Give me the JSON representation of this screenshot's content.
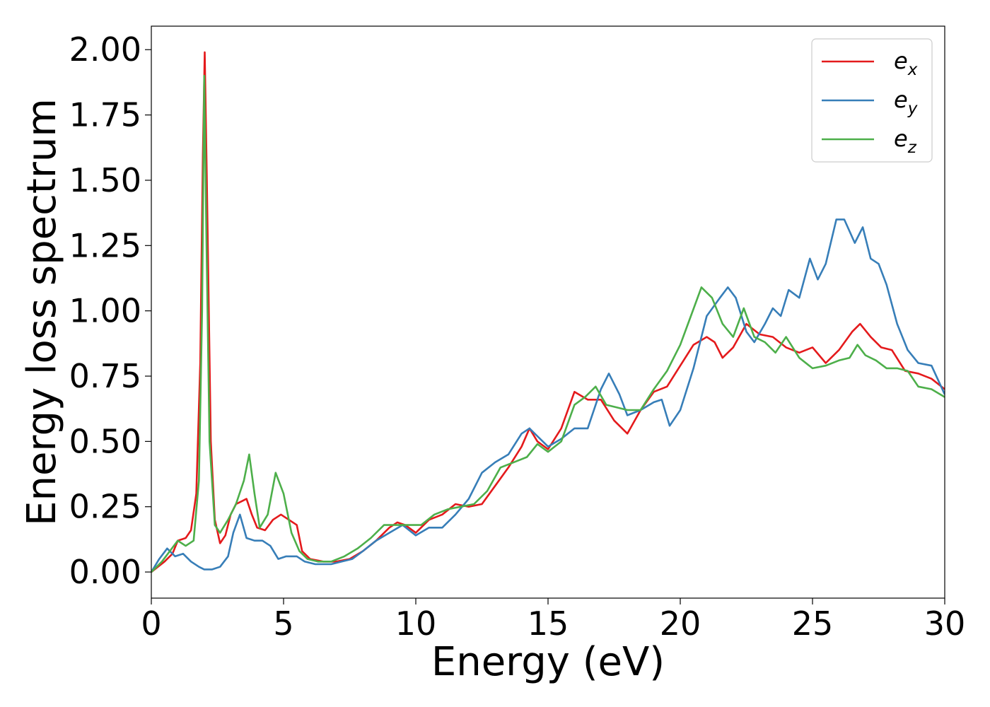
{
  "chart_data": {
    "type": "line",
    "title": "",
    "xlabel": "Energy (eV)",
    "ylabel": "Energy loss spectrum",
    "xlim": [
      0,
      30
    ],
    "ylim": [
      -0.1,
      2.09
    ],
    "xticks": [
      0,
      5,
      10,
      15,
      20,
      25,
      30
    ],
    "xtick_labels": [
      "0",
      "5",
      "10",
      "15",
      "20",
      "25",
      "30"
    ],
    "yticks": [
      0,
      0.25,
      0.5,
      0.75,
      1.0,
      1.25,
      1.5,
      1.75,
      2.0
    ],
    "ytick_labels": [
      "0.00",
      "0.25",
      "0.50",
      "0.75",
      "1.00",
      "1.25",
      "1.50",
      "1.75",
      "2.00"
    ],
    "grid": false,
    "legend_position": "top-right",
    "series": [
      {
        "name": "e_x",
        "label_base": "e",
        "label_sub": "x",
        "color": "#e41a1c",
        "points": [
          [
            0,
            0
          ],
          [
            0.5,
            0.04
          ],
          [
            0.8,
            0.07
          ],
          [
            1.0,
            0.12
          ],
          [
            1.3,
            0.13
          ],
          [
            1.5,
            0.16
          ],
          [
            1.7,
            0.3
          ],
          [
            1.85,
            0.8
          ],
          [
            1.95,
            1.6
          ],
          [
            2.02,
            1.99
          ],
          [
            2.1,
            1.5
          ],
          [
            2.25,
            0.5
          ],
          [
            2.4,
            0.2
          ],
          [
            2.6,
            0.11
          ],
          [
            2.8,
            0.14
          ],
          [
            3.0,
            0.22
          ],
          [
            3.2,
            0.26
          ],
          [
            3.4,
            0.27
          ],
          [
            3.6,
            0.28
          ],
          [
            3.8,
            0.22
          ],
          [
            4.0,
            0.17
          ],
          [
            4.3,
            0.16
          ],
          [
            4.6,
            0.2
          ],
          [
            4.9,
            0.22
          ],
          [
            5.2,
            0.2
          ],
          [
            5.5,
            0.18
          ],
          [
            5.7,
            0.08
          ],
          [
            6.0,
            0.05
          ],
          [
            6.5,
            0.04
          ],
          [
            7.0,
            0.04
          ],
          [
            7.5,
            0.05
          ],
          [
            8.0,
            0.08
          ],
          [
            8.5,
            0.12
          ],
          [
            9.0,
            0.17
          ],
          [
            9.3,
            0.19
          ],
          [
            9.6,
            0.18
          ],
          [
            10.0,
            0.15
          ],
          [
            10.5,
            0.2
          ],
          [
            11.0,
            0.22
          ],
          [
            11.5,
            0.26
          ],
          [
            12.0,
            0.25
          ],
          [
            12.5,
            0.26
          ],
          [
            13.0,
            0.33
          ],
          [
            13.5,
            0.4
          ],
          [
            14.0,
            0.48
          ],
          [
            14.3,
            0.55
          ],
          [
            14.6,
            0.5
          ],
          [
            15.0,
            0.47
          ],
          [
            15.5,
            0.55
          ],
          [
            16.0,
            0.69
          ],
          [
            16.5,
            0.66
          ],
          [
            17.0,
            0.66
          ],
          [
            17.5,
            0.58
          ],
          [
            18.0,
            0.53
          ],
          [
            18.5,
            0.62
          ],
          [
            19.0,
            0.69
          ],
          [
            19.5,
            0.71
          ],
          [
            20.0,
            0.79
          ],
          [
            20.5,
            0.87
          ],
          [
            21.0,
            0.9
          ],
          [
            21.3,
            0.88
          ],
          [
            21.6,
            0.82
          ],
          [
            22.0,
            0.86
          ],
          [
            22.5,
            0.95
          ],
          [
            23.0,
            0.91
          ],
          [
            23.5,
            0.9
          ],
          [
            24.0,
            0.86
          ],
          [
            24.5,
            0.84
          ],
          [
            25.0,
            0.86
          ],
          [
            25.5,
            0.8
          ],
          [
            26.0,
            0.85
          ],
          [
            26.5,
            0.92
          ],
          [
            26.8,
            0.95
          ],
          [
            27.2,
            0.9
          ],
          [
            27.6,
            0.86
          ],
          [
            28.0,
            0.85
          ],
          [
            28.5,
            0.77
          ],
          [
            29.0,
            0.76
          ],
          [
            29.5,
            0.74
          ],
          [
            30.0,
            0.7
          ]
        ]
      },
      {
        "name": "e_y",
        "label_base": "e",
        "label_sub": "y",
        "color": "#377eb8",
        "points": [
          [
            0,
            0
          ],
          [
            0.3,
            0.05
          ],
          [
            0.6,
            0.09
          ],
          [
            0.9,
            0.06
          ],
          [
            1.2,
            0.07
          ],
          [
            1.5,
            0.04
          ],
          [
            1.8,
            0.02
          ],
          [
            2.0,
            0.01
          ],
          [
            2.3,
            0.01
          ],
          [
            2.6,
            0.02
          ],
          [
            2.9,
            0.06
          ],
          [
            3.1,
            0.15
          ],
          [
            3.35,
            0.22
          ],
          [
            3.6,
            0.13
          ],
          [
            3.9,
            0.12
          ],
          [
            4.2,
            0.12
          ],
          [
            4.5,
            0.1
          ],
          [
            4.8,
            0.05
          ],
          [
            5.1,
            0.06
          ],
          [
            5.5,
            0.06
          ],
          [
            5.8,
            0.04
          ],
          [
            6.2,
            0.03
          ],
          [
            6.8,
            0.03
          ],
          [
            7.2,
            0.04
          ],
          [
            7.6,
            0.05
          ],
          [
            8.0,
            0.08
          ],
          [
            8.5,
            0.12
          ],
          [
            9.0,
            0.15
          ],
          [
            9.5,
            0.18
          ],
          [
            10.0,
            0.14
          ],
          [
            10.5,
            0.17
          ],
          [
            11.0,
            0.17
          ],
          [
            11.5,
            0.22
          ],
          [
            12.0,
            0.28
          ],
          [
            12.5,
            0.38
          ],
          [
            13.0,
            0.42
          ],
          [
            13.5,
            0.45
          ],
          [
            14.0,
            0.53
          ],
          [
            14.3,
            0.55
          ],
          [
            14.6,
            0.52
          ],
          [
            15.0,
            0.48
          ],
          [
            15.5,
            0.51
          ],
          [
            16.0,
            0.55
          ],
          [
            16.5,
            0.55
          ],
          [
            17.0,
            0.7
          ],
          [
            17.3,
            0.76
          ],
          [
            17.7,
            0.68
          ],
          [
            18.0,
            0.6
          ],
          [
            18.5,
            0.62
          ],
          [
            19.0,
            0.65
          ],
          [
            19.3,
            0.66
          ],
          [
            19.6,
            0.56
          ],
          [
            20.0,
            0.62
          ],
          [
            20.5,
            0.78
          ],
          [
            21.0,
            0.98
          ],
          [
            21.5,
            1.05
          ],
          [
            21.8,
            1.09
          ],
          [
            22.1,
            1.05
          ],
          [
            22.5,
            0.92
          ],
          [
            22.8,
            0.88
          ],
          [
            23.2,
            0.95
          ],
          [
            23.5,
            1.01
          ],
          [
            23.8,
            0.98
          ],
          [
            24.1,
            1.08
          ],
          [
            24.5,
            1.05
          ],
          [
            24.9,
            1.2
          ],
          [
            25.2,
            1.12
          ],
          [
            25.5,
            1.18
          ],
          [
            25.9,
            1.35
          ],
          [
            26.2,
            1.35
          ],
          [
            26.6,
            1.26
          ],
          [
            26.9,
            1.32
          ],
          [
            27.2,
            1.2
          ],
          [
            27.5,
            1.18
          ],
          [
            27.8,
            1.1
          ],
          [
            28.2,
            0.95
          ],
          [
            28.6,
            0.85
          ],
          [
            29.0,
            0.8
          ],
          [
            29.5,
            0.79
          ],
          [
            30.0,
            0.68
          ]
        ]
      },
      {
        "name": "e_z",
        "label_base": "e",
        "label_sub": "z",
        "color": "#4daf4a",
        "points": [
          [
            0,
            0
          ],
          [
            0.4,
            0.04
          ],
          [
            0.7,
            0.08
          ],
          [
            1.0,
            0.12
          ],
          [
            1.3,
            0.1
          ],
          [
            1.6,
            0.12
          ],
          [
            1.8,
            0.35
          ],
          [
            1.92,
            1.0
          ],
          [
            2.0,
            1.9
          ],
          [
            2.08,
            1.3
          ],
          [
            2.2,
            0.5
          ],
          [
            2.4,
            0.18
          ],
          [
            2.6,
            0.15
          ],
          [
            2.9,
            0.2
          ],
          [
            3.2,
            0.26
          ],
          [
            3.5,
            0.35
          ],
          [
            3.7,
            0.45
          ],
          [
            3.9,
            0.3
          ],
          [
            4.1,
            0.17
          ],
          [
            4.4,
            0.22
          ],
          [
            4.7,
            0.38
          ],
          [
            5.0,
            0.3
          ],
          [
            5.3,
            0.15
          ],
          [
            5.6,
            0.08
          ],
          [
            5.9,
            0.05
          ],
          [
            6.3,
            0.04
          ],
          [
            6.8,
            0.04
          ],
          [
            7.3,
            0.06
          ],
          [
            7.8,
            0.09
          ],
          [
            8.3,
            0.13
          ],
          [
            8.8,
            0.18
          ],
          [
            9.2,
            0.18
          ],
          [
            9.7,
            0.18
          ],
          [
            10.2,
            0.18
          ],
          [
            10.7,
            0.22
          ],
          [
            11.2,
            0.24
          ],
          [
            11.7,
            0.25
          ],
          [
            12.2,
            0.26
          ],
          [
            12.7,
            0.31
          ],
          [
            13.2,
            0.4
          ],
          [
            13.7,
            0.42
          ],
          [
            14.2,
            0.44
          ],
          [
            14.6,
            0.49
          ],
          [
            15.0,
            0.46
          ],
          [
            15.5,
            0.5
          ],
          [
            16.0,
            0.64
          ],
          [
            16.4,
            0.67
          ],
          [
            16.8,
            0.71
          ],
          [
            17.2,
            0.64
          ],
          [
            17.6,
            0.63
          ],
          [
            18.0,
            0.62
          ],
          [
            18.5,
            0.62
          ],
          [
            19.0,
            0.7
          ],
          [
            19.5,
            0.77
          ],
          [
            20.0,
            0.87
          ],
          [
            20.4,
            0.98
          ],
          [
            20.8,
            1.09
          ],
          [
            21.2,
            1.05
          ],
          [
            21.6,
            0.95
          ],
          [
            22.0,
            0.9
          ],
          [
            22.4,
            1.01
          ],
          [
            22.8,
            0.9
          ],
          [
            23.2,
            0.88
          ],
          [
            23.6,
            0.84
          ],
          [
            24.0,
            0.9
          ],
          [
            24.5,
            0.82
          ],
          [
            25.0,
            0.78
          ],
          [
            25.5,
            0.79
          ],
          [
            26.0,
            0.81
          ],
          [
            26.4,
            0.82
          ],
          [
            26.7,
            0.87
          ],
          [
            27.0,
            0.83
          ],
          [
            27.4,
            0.81
          ],
          [
            27.8,
            0.78
          ],
          [
            28.2,
            0.78
          ],
          [
            28.6,
            0.77
          ],
          [
            29.0,
            0.71
          ],
          [
            29.5,
            0.7
          ],
          [
            30.0,
            0.67
          ]
        ]
      }
    ]
  }
}
